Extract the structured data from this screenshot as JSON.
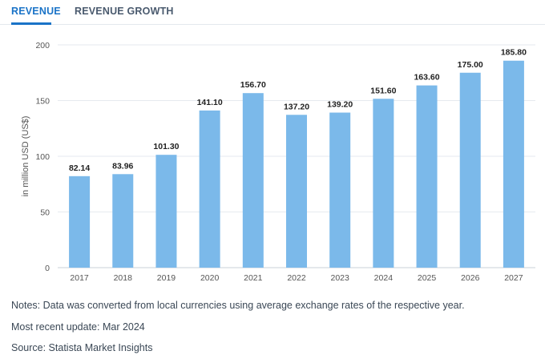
{
  "tabs": [
    {
      "label": "REVENUE",
      "active": true
    },
    {
      "label": "REVENUE GROWTH",
      "active": false
    }
  ],
  "chart_data": {
    "type": "bar",
    "categories": [
      "2017",
      "2018",
      "2019",
      "2020",
      "2021",
      "2022",
      "2023",
      "2024",
      "2025",
      "2026",
      "2027"
    ],
    "values": [
      82.14,
      83.96,
      101.3,
      141.1,
      156.7,
      137.2,
      139.2,
      151.6,
      163.6,
      175.0,
      185.8
    ],
    "value_labels": [
      "82.14",
      "83.96",
      "101.30",
      "141.10",
      "156.70",
      "137.20",
      "139.20",
      "151.60",
      "163.60",
      "175.00",
      "185.80"
    ],
    "ylabel": "in million USD (US$)",
    "ylim": [
      0,
      200
    ],
    "yticks": [
      "0",
      "50",
      "100",
      "150",
      "200"
    ],
    "grid": true,
    "bar_color": "#7bb9ea"
  },
  "notes": {
    "note": "Notes: Data was converted from local currencies using average exchange rates of the respective year.",
    "update": "Most recent update: Mar 2024",
    "source": "Source: Statista Market Insights"
  }
}
